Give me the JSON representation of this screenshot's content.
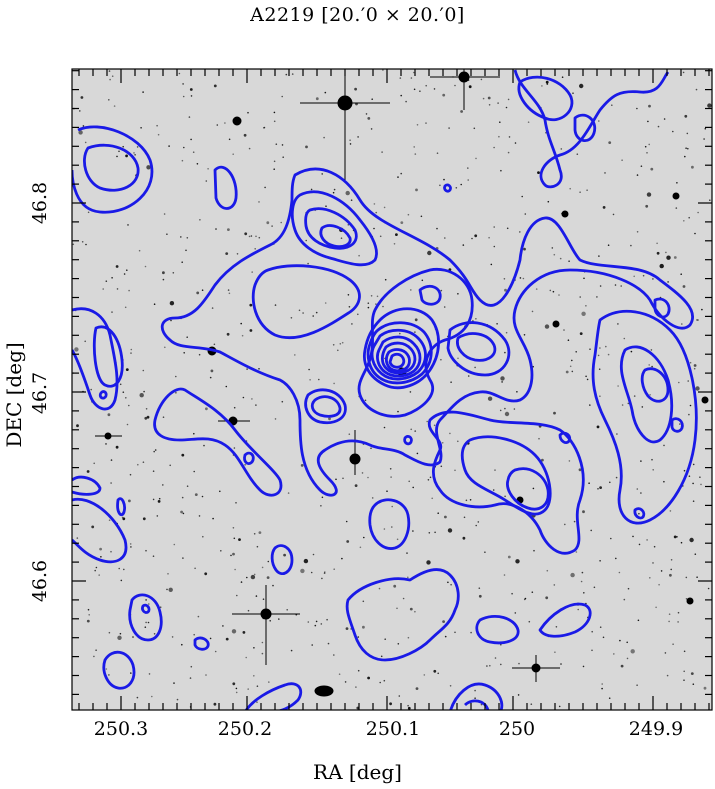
{
  "title": "A2219   [20.′0 × 20.′0]",
  "axes": {
    "xlabel": "RA [deg]",
    "ylabel": "DEC [deg]",
    "xticks": [
      "250.3",
      "250.2",
      "250.1",
      "250",
      "249.9"
    ],
    "yticks": [
      "46.8",
      "46.7",
      "46.6"
    ]
  },
  "image": {
    "field": "A2219",
    "field_size": "20.′0 × 20.′0",
    "background": "grayscale optical sky image with stars and galaxies",
    "contour_color": "#1a1ae6",
    "background_color": "#d8d8d8"
  }
}
